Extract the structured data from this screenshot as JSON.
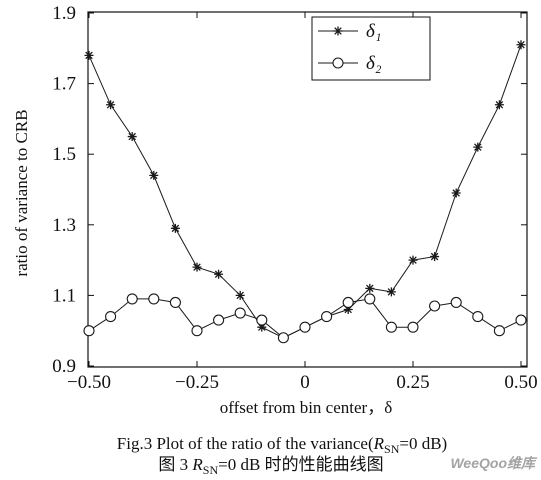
{
  "chart_data": {
    "type": "line",
    "xlabel": "offset from bin center，δ",
    "ylabel": "ratio of variance to CRB",
    "xlim": [
      -0.5,
      0.5
    ],
    "ylim": [
      0.9,
      1.9
    ],
    "xticks": [
      -0.5,
      -0.25,
      0,
      0.25,
      0.5
    ],
    "xtick_labels": [
      "−0.50",
      "−0.25",
      "0",
      "0.25",
      "0.50"
    ],
    "yticks": [
      0.9,
      1.1,
      1.3,
      1.5,
      1.7,
      1.9
    ],
    "ytick_labels": [
      "0.9",
      "1.1",
      "1.3",
      "1.5",
      "1.7",
      "1.9"
    ],
    "grid": false,
    "legend_position": "top-right",
    "x": [
      -0.5,
      -0.45,
      -0.4,
      -0.35,
      -0.3,
      -0.25,
      -0.2,
      -0.15,
      -0.1,
      -0.05,
      0,
      0.05,
      0.1,
      0.15,
      0.2,
      0.25,
      0.3,
      0.35,
      0.4,
      0.45,
      0.5
    ],
    "series": [
      {
        "name": "δ₁",
        "marker": "star",
        "color": "#1a1a1a",
        "values": [
          1.78,
          1.64,
          1.55,
          1.44,
          1.29,
          1.18,
          1.16,
          1.1,
          1.01,
          0.98,
          1.01,
          1.04,
          1.06,
          1.12,
          1.11,
          1.2,
          1.21,
          1.39,
          1.52,
          1.64,
          1.81
        ]
      },
      {
        "name": "δ₂",
        "marker": "circle",
        "color": "#1a1a1a",
        "values": [
          1.0,
          1.04,
          1.09,
          1.09,
          1.08,
          1.0,
          1.03,
          1.05,
          1.03,
          0.98,
          1.01,
          1.04,
          1.08,
          1.09,
          1.01,
          1.01,
          1.07,
          1.08,
          1.04,
          1.0,
          1.03
        ]
      }
    ]
  },
  "caption": {
    "en": {
      "prefix": "Fig.3 Plot of the ratio of the variance(",
      "var": "R",
      "sub": "SN",
      "suffix": "=0 dB)"
    },
    "zh": {
      "prefix": "图 3 ",
      "var": "R",
      "sub": "SN",
      "suffix": "=0 dB 时的性能曲线图"
    }
  },
  "watermark": "WeeQoo维库"
}
